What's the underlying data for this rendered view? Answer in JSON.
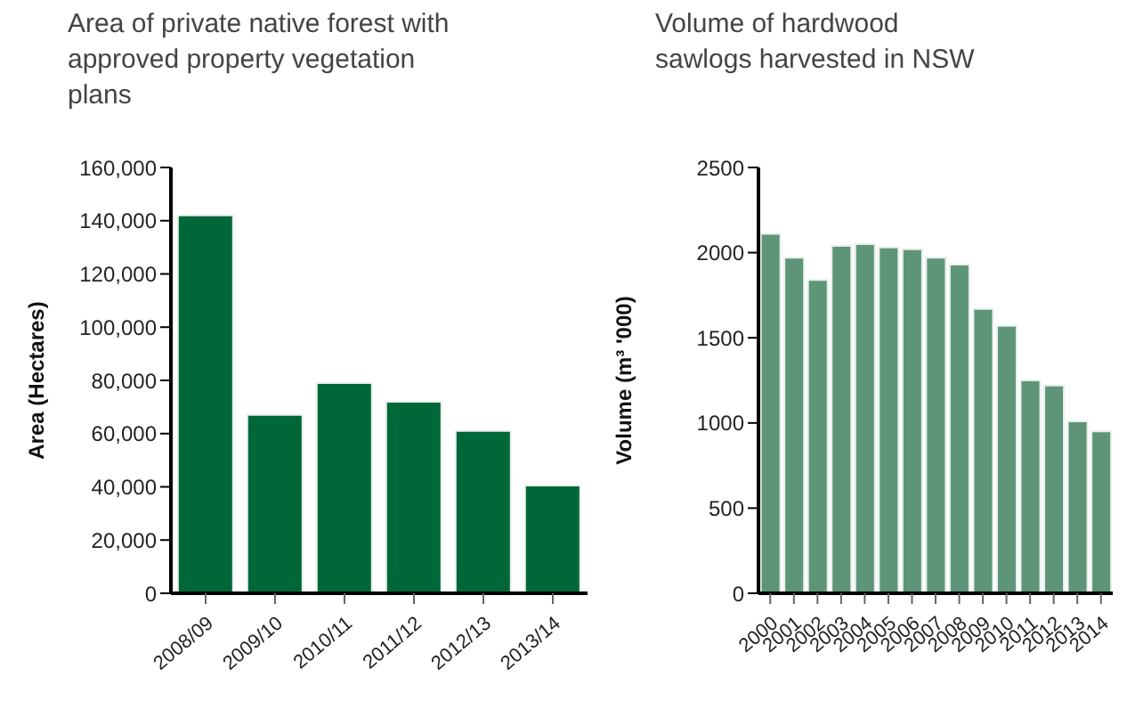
{
  "chart_data": [
    {
      "type": "bar",
      "title": "Area of private native forest with approved property vegetation plans",
      "ylabel": "Area (Hectares)",
      "categories": [
        "2008/09",
        "2009/10",
        "2010/11",
        "2011/12",
        "2012/13",
        "2013/14"
      ],
      "values": [
        142000,
        67000,
        79000,
        72000,
        61000,
        40500
      ],
      "color": "#006838",
      "ylim": [
        0,
        160000
      ],
      "yticks": [
        {
          "value": 0,
          "label": "0"
        },
        {
          "value": 20000,
          "label": "20,000"
        },
        {
          "value": 40000,
          "label": "40,000"
        },
        {
          "value": 60000,
          "label": "60,000"
        },
        {
          "value": 80000,
          "label": "80,000"
        },
        {
          "value": 100000,
          "label": "100,000"
        },
        {
          "value": 120000,
          "label": "120,000"
        },
        {
          "value": 140000,
          "label": "140,000"
        },
        {
          "value": 160000,
          "label": "160,000"
        }
      ],
      "grid": false,
      "legend": false
    },
    {
      "type": "bar",
      "title": "Volume of hardwood sawlogs harvested in NSW",
      "ylabel": "Volume (m³ '000)",
      "categories": [
        "2000",
        "2001",
        "2002",
        "2003",
        "2004",
        "2005",
        "2006",
        "2007",
        "2008",
        "2009",
        "2010",
        "2011",
        "2012",
        "2013",
        "2014"
      ],
      "values": [
        2110,
        1970,
        1840,
        2040,
        2050,
        2030,
        2020,
        1970,
        1930,
        1670,
        1570,
        1250,
        1220,
        1010,
        950
      ],
      "color": "#5e9478",
      "ylim": [
        0,
        2500
      ],
      "yticks": [
        0,
        500,
        1000,
        1500,
        2000,
        2500
      ],
      "grid": false,
      "legend": false
    }
  ]
}
